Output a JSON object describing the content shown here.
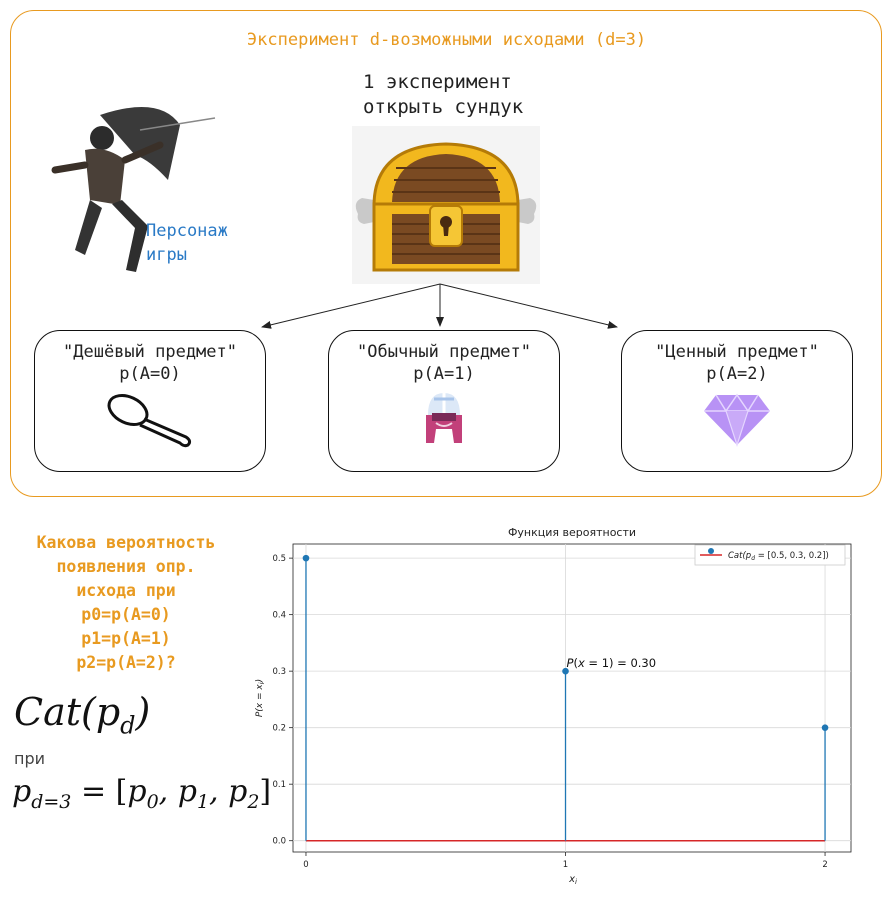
{
  "diagram": {
    "title": "Эксперимент d-возможными исходами (d=3)",
    "experiment_label_line1": "1 эксперимент",
    "experiment_label_line2": "открыть сундук",
    "character_label_line1": "Персонаж",
    "character_label_line2": "игры",
    "outcomes": [
      {
        "name": "\"Дешёвый предмет\"",
        "prob": "p(A=0)",
        "icon": "spoon-icon"
      },
      {
        "name": "\"Обычный предмет\"",
        "prob": "p(A=1)",
        "icon": "helmet-icon"
      },
      {
        "name": "\"Ценный предмет\"",
        "prob": "p(A=2)",
        "icon": "gem-icon"
      }
    ],
    "colors": {
      "accent": "#e89a20",
      "blue": "#2a7ac6",
      "stem": "#1f77b4",
      "baseline": "#d62728"
    }
  },
  "question": {
    "lines": [
      "Какова вероятность",
      "появления опр.",
      "исхода при",
      "p0=p(A=0)",
      "p1=p(A=1)",
      "p2=p(A=2)?"
    ]
  },
  "formula": {
    "main": "Cat(p_d)",
    "pri": "при",
    "vector": "p_{d=3} = [p_0, p_1, p_2]"
  },
  "chart_data": {
    "type": "stem",
    "title": "Функция вероятности",
    "xlabel": "x_i",
    "ylabel": "P(x = x_i)",
    "x": [
      0,
      1,
      2
    ],
    "values": [
      0.5,
      0.3,
      0.2
    ],
    "xticks": [
      "0",
      "1",
      "2"
    ],
    "yticks": [
      "0.0",
      "0.1",
      "0.2",
      "0.3",
      "0.4",
      "0.5"
    ],
    "ylim": [
      -0.02,
      0.525
    ],
    "xlim": [
      -0.05,
      2.1
    ],
    "grid": true,
    "legend": "Cat(p_d = [0.5, 0.3, 0.2])",
    "legend_position": "top-right",
    "annotation": "P(x = 1) = 0.30"
  }
}
